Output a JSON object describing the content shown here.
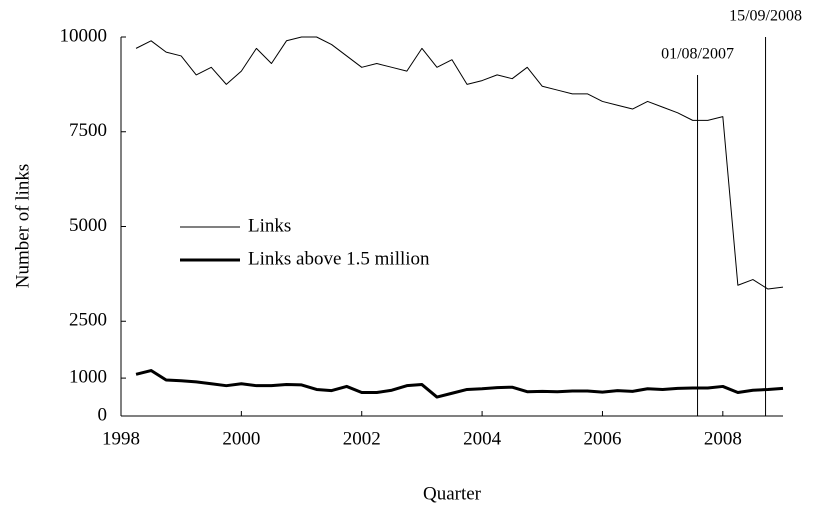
{
  "chart_data": {
    "type": "line",
    "x_label": "Quarter",
    "y_label": "Number of links",
    "x": [
      1998.25,
      1998.5,
      1998.75,
      1999,
      1999.25,
      1999.5,
      1999.75,
      2000,
      2000.25,
      2000.5,
      2000.75,
      2001,
      2001.25,
      2001.5,
      2001.75,
      2002,
      2002.25,
      2002.5,
      2002.75,
      2003,
      2003.25,
      2003.5,
      2003.75,
      2004,
      2004.25,
      2004.5,
      2004.75,
      2005,
      2005.25,
      2005.5,
      2005.75,
      2006,
      2006.25,
      2006.5,
      2006.75,
      2007,
      2007.25,
      2007.5,
      2007.75,
      2008,
      2008.25,
      2008.5,
      2008.75,
      2009
    ],
    "series": [
      {
        "name": "Links",
        "color": "#000000",
        "width": 1,
        "values": [
          9700,
          9900,
          9600,
          9500,
          9000,
          9200,
          8750,
          9100,
          9700,
          9300,
          9900,
          10000,
          10000,
          9800,
          9500,
          9200,
          9300,
          9200,
          9100,
          9700,
          9200,
          9400,
          8750,
          8850,
          9000,
          8900,
          9200,
          8700,
          8600,
          8500,
          8500,
          8300,
          8200,
          8100,
          8300,
          8150,
          8000,
          7800,
          7800,
          7900,
          3450,
          3600,
          3350,
          3400
        ]
      },
      {
        "name": "Links above 1.5 million",
        "color": "#000000",
        "width": 3,
        "values": [
          1100,
          1200,
          950,
          930,
          900,
          850,
          800,
          850,
          800,
          800,
          830,
          820,
          700,
          670,
          780,
          620,
          620,
          680,
          800,
          830,
          500,
          600,
          700,
          720,
          750,
          760,
          640,
          650,
          640,
          660,
          660,
          630,
          670,
          650,
          720,
          700,
          730,
          740,
          740,
          780,
          620,
          680,
          700,
          730
        ]
      }
    ],
    "annotations": [
      {
        "label": "01/08/2007",
        "x": 2007.58
      },
      {
        "label": "15/09/2008",
        "x": 2008.71
      }
    ],
    "xlim": [
      1998,
      2009
    ],
    "xticks": [
      1998,
      2000,
      2002,
      2004,
      2006,
      2008
    ],
    "ylim": [
      0,
      10000
    ],
    "yticks": [
      0,
      1000,
      2500,
      5000,
      7500,
      10000
    ],
    "legend": "center left"
  }
}
